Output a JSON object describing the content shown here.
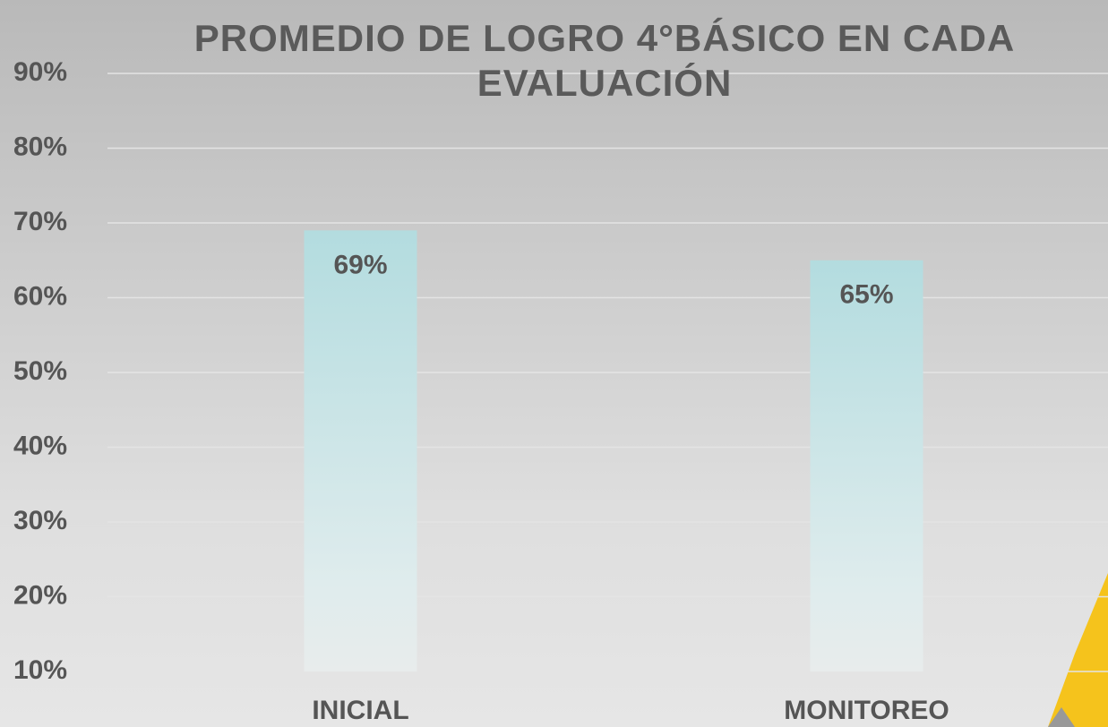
{
  "chart_data": {
    "type": "bar",
    "title": "PROMEDIO DE LOGRO 4°BÁSICO EN CADA EVALUACIÓN",
    "categories": [
      "INICIAL",
      "MONITOREO"
    ],
    "values": [
      69,
      65
    ],
    "value_labels": [
      "69%",
      "65%"
    ],
    "color": "#b3dcdf",
    "ylim": [
      10,
      90
    ],
    "yticks": [
      {
        "value": 10,
        "label": "10%"
      },
      {
        "value": 20,
        "label": "20%"
      },
      {
        "value": 30,
        "label": "30%"
      },
      {
        "value": 40,
        "label": "40%"
      },
      {
        "value": 50,
        "label": "50%"
      },
      {
        "value": 60,
        "label": "60%"
      },
      {
        "value": 70,
        "label": "70%"
      },
      {
        "value": 80,
        "label": "80%"
      },
      {
        "value": 90,
        "label": "90%"
      }
    ],
    "grid": true
  }
}
